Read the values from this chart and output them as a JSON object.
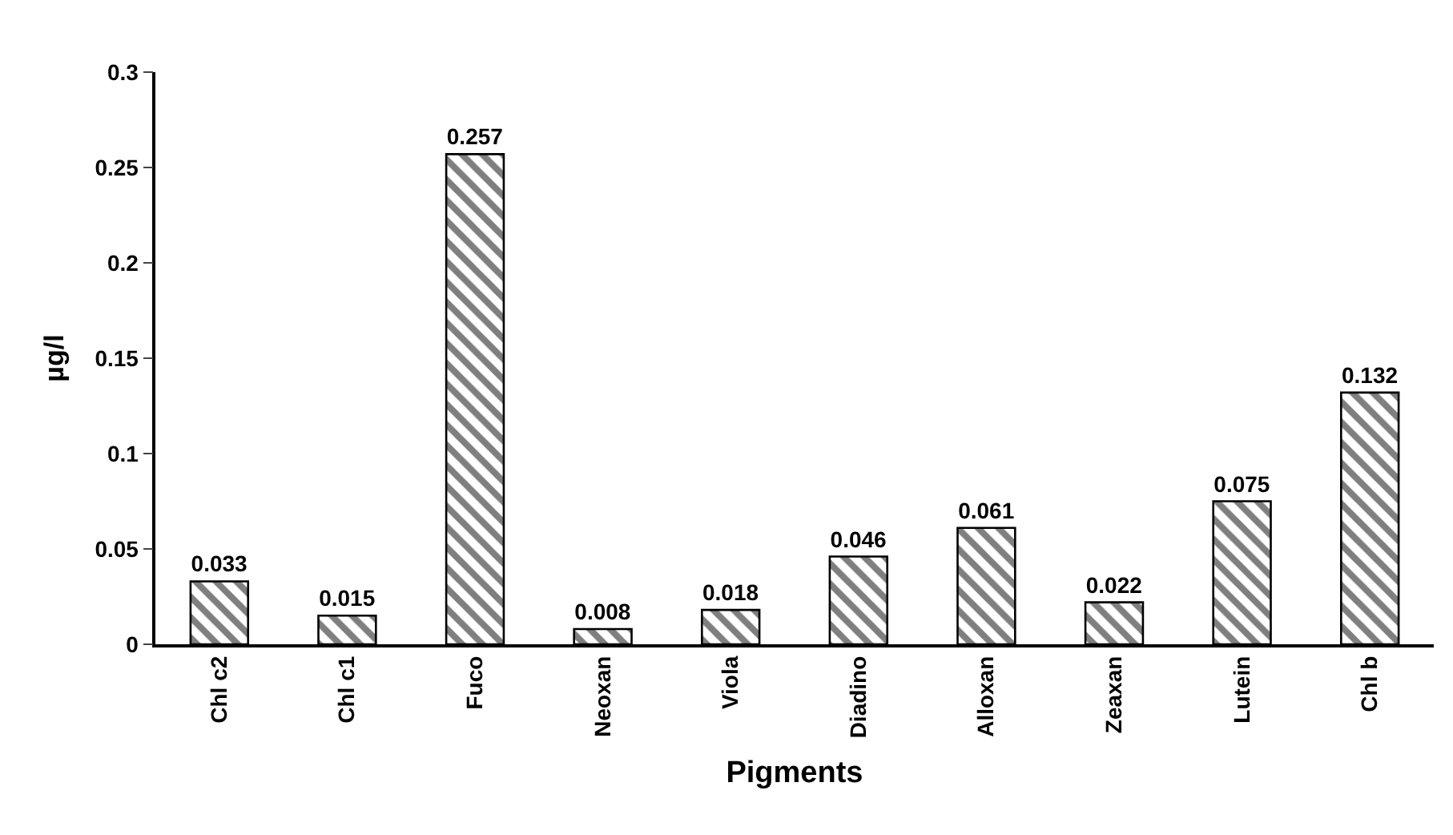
{
  "chart_data": {
    "type": "bar",
    "xlabel": "Pigments",
    "ylabel": "µg/l",
    "categories": [
      "Chl c2",
      "Chl c1",
      "Fuco",
      "Neoxan",
      "Viola",
      "Diadino",
      "Alloxan",
      "Zeaxan",
      "Lutein",
      "Chl b"
    ],
    "values": [
      0.033,
      0.015,
      0.257,
      0.008,
      0.018,
      0.046,
      0.061,
      0.022,
      0.075,
      0.132
    ],
    "color": "#000000",
    "ylim": [
      0,
      0.3
    ],
    "yticks": [
      0,
      0.05,
      0.1,
      0.15,
      0.2,
      0.25,
      0.3
    ],
    "data_labels": true
  }
}
